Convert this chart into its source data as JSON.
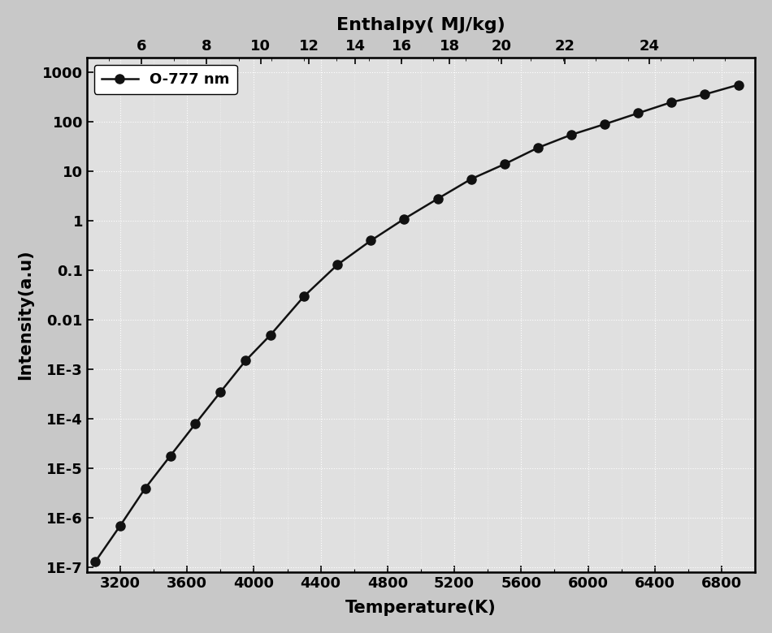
{
  "title_top": "Enthalpy( MJ/kg)",
  "xlabel": "Temperature(K)",
  "ylabel": "Intensity(a.u)",
  "legend_label": "O-777 nm",
  "line_color": "#111111",
  "marker_color": "#111111",
  "marker_style": "o",
  "marker_size": 8,
  "line_width": 1.8,
  "temperature": [
    3050,
    3200,
    3350,
    3500,
    3650,
    3800,
    3950,
    4100,
    4300,
    4500,
    4700,
    4900,
    5100,
    5300,
    5500,
    5700,
    5900,
    6100,
    6300,
    6500,
    6700,
    6900
  ],
  "intensity": [
    1.3e-07,
    7e-07,
    4e-06,
    1.8e-05,
    8e-05,
    0.00035,
    0.0015,
    0.005,
    0.03,
    0.13,
    0.4,
    1.1,
    2.8,
    7.0,
    14,
    30,
    55,
    90,
    150,
    250,
    360,
    560
  ],
  "enthalpy": [
    4.8,
    5.4,
    6.1,
    6.8,
    7.6,
    8.5,
    9.4,
    10.4,
    11.8,
    13.2,
    14.7,
    16.1,
    17.5,
    18.9,
    20.1,
    21.2,
    22.2,
    23.0,
    23.8,
    24.4,
    24.9,
    25.4
  ],
  "xlim": [
    3000,
    7000
  ],
  "ylim": [
    8e-08,
    2000
  ],
  "xticks": [
    3200,
    3600,
    4000,
    4400,
    4800,
    5200,
    5600,
    6000,
    6400,
    6800
  ],
  "enthalpy_ticks": [
    6,
    8,
    10,
    12,
    14,
    16,
    18,
    20,
    22,
    24
  ],
  "ytick_labels": [
    "1E-7",
    "1E-6",
    "1E-5",
    "1E-4",
    "1E-3",
    "0.01",
    "0.1",
    "1",
    "10",
    "100",
    "1000"
  ],
  "ytick_values": [
    1e-07,
    1e-06,
    1e-05,
    0.0001,
    0.001,
    0.01,
    0.1,
    1,
    10,
    100,
    1000
  ],
  "background_color": "#e0e0e0",
  "fig_color": "#c8c8c8",
  "grid_color": "#ffffff",
  "font_size_label": 15,
  "font_size_tick": 13,
  "font_size_title": 16
}
